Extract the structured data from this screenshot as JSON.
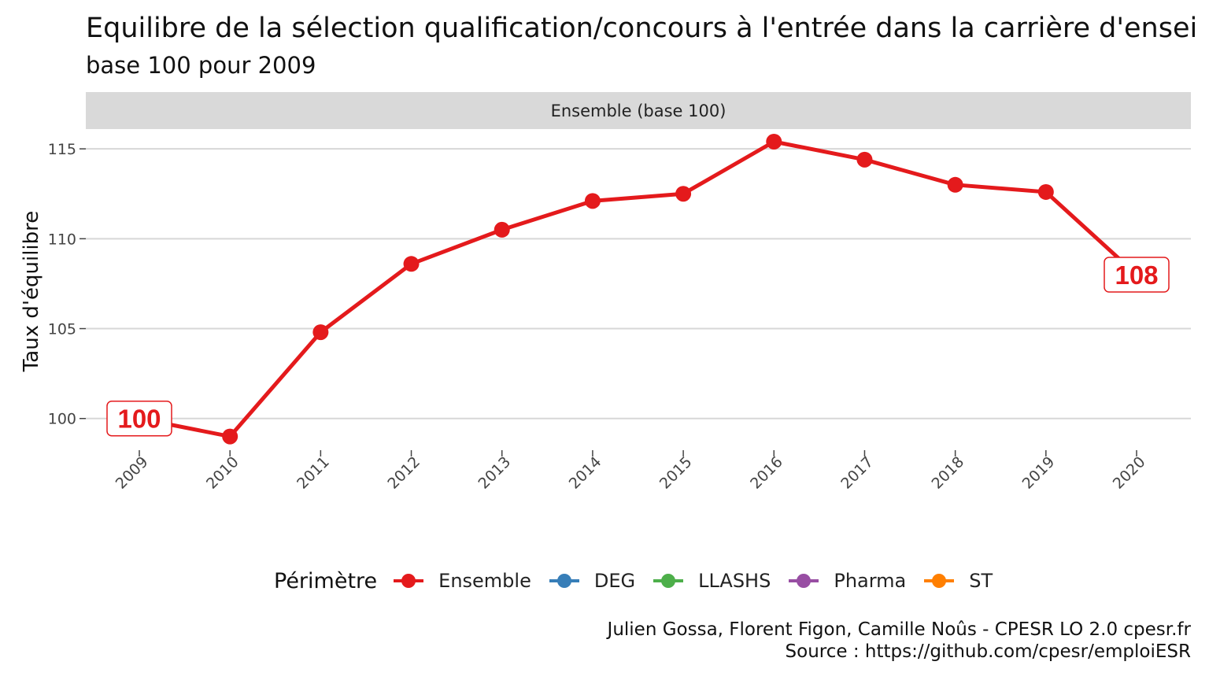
{
  "title": "Equilibre de la sélection qualification/concours à l'entrée dans la carrière d'ensei",
  "subtitle": "base 100 pour 2009",
  "facet_label": "Ensemble (base 100)",
  "caption": {
    "line1": "Julien Gossa, Florent Figon, Camille Noûs - CPESR LO 2.0 cpesr.fr",
    "line2": "Source : https://github.com/cpesr/emploiESR"
  },
  "legend": {
    "title": "Périmètre",
    "items": [
      {
        "label": "Ensemble",
        "color": "#e41a1c"
      },
      {
        "label": "DEG",
        "color": "#377eb8"
      },
      {
        "label": "LLASHS",
        "color": "#4daf4a"
      },
      {
        "label": "Pharma",
        "color": "#984ea3"
      },
      {
        "label": "ST",
        "color": "#ff7f00"
      }
    ]
  },
  "chart_data": {
    "type": "line",
    "title": "Equilibre de la sélection qualification/concours à l'entrée dans la carrière d'ensei",
    "subtitle": "base 100 pour 2009",
    "xlabel": "",
    "ylabel": "Taux d'équilibre",
    "x": [
      "2009",
      "2010",
      "2011",
      "2012",
      "2013",
      "2014",
      "2015",
      "2016",
      "2017",
      "2018",
      "2019",
      "2020"
    ],
    "y_ticks": [
      100,
      105,
      110,
      115
    ],
    "ylim": [
      98.5,
      116.1
    ],
    "grid": "horizontal major",
    "legend_position": "bottom",
    "series": [
      {
        "name": "Ensemble",
        "color": "#e41a1c",
        "values": [
          100,
          99.0,
          104.8,
          108.6,
          110.5,
          112.1,
          112.5,
          115.4,
          114.4,
          113.0,
          112.6,
          108.0
        ]
      }
    ],
    "point_labels": [
      {
        "x": "2009",
        "text": "100"
      },
      {
        "x": "2020",
        "text": "108"
      }
    ]
  }
}
